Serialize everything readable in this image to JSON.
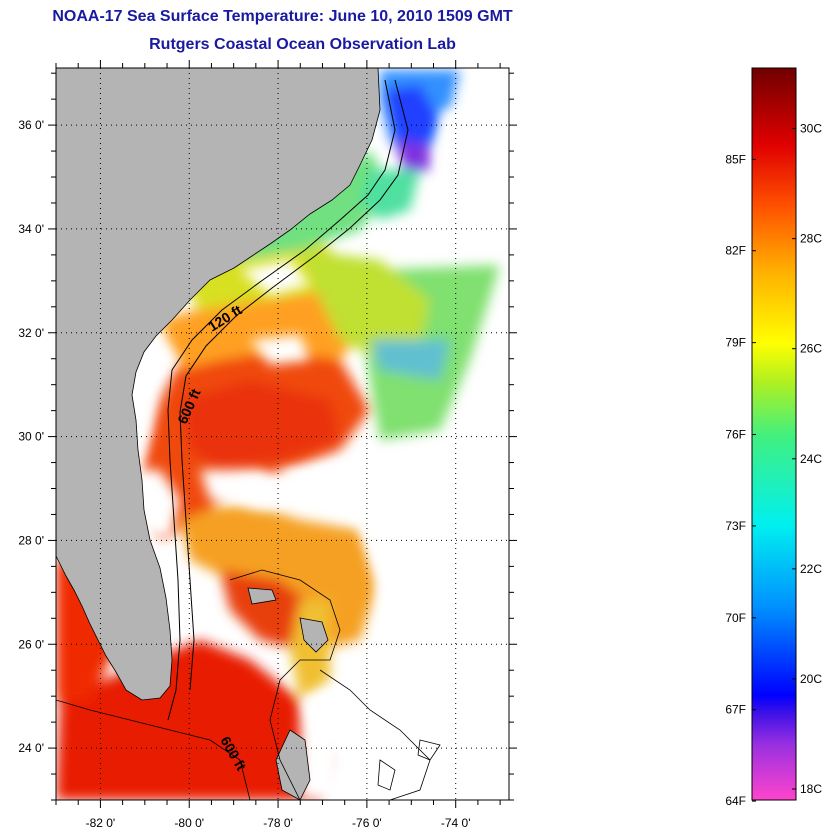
{
  "header": {
    "title": "NOAA-17 Sea Surface Temperature:  June 10, 2010 1509 GMT",
    "subtitle": "Rutgers Coastal Ocean Observation Lab"
  },
  "map": {
    "lon_range": [
      -83,
      -72.8
    ],
    "lat_range": [
      23,
      37.1
    ],
    "lon_ticks": [
      {
        "value": -82,
        "label": "-82 0'"
      },
      {
        "value": -80,
        "label": "-80 0'"
      },
      {
        "value": -78,
        "label": "-78 0'"
      },
      {
        "value": -76,
        "label": "-76 0'"
      },
      {
        "value": -74,
        "label": "-74 0'"
      }
    ],
    "lat_ticks": [
      {
        "value": 24,
        "label": "24 0'"
      },
      {
        "value": 26,
        "label": "26 0'"
      },
      {
        "value": 28,
        "label": "28 0'"
      },
      {
        "value": 30,
        "label": "30 0'"
      },
      {
        "value": 32,
        "label": "32 0'"
      },
      {
        "value": 34,
        "label": "34 0'"
      },
      {
        "value": 36,
        "label": "36 0'"
      }
    ],
    "contour_labels": [
      "120 ft",
      "600 ft",
      "600 ft"
    ],
    "land_color": "#b4b4b4",
    "cloud_color": "#ffffff"
  },
  "colorbar": {
    "temp_range_c": [
      17.8,
      31.1
    ],
    "fahrenheit_labels": [
      {
        "value_c": 17.78,
        "label": "64F"
      },
      {
        "value_c": 19.44,
        "label": "67F"
      },
      {
        "value_c": 21.11,
        "label": "70F"
      },
      {
        "value_c": 22.78,
        "label": "73F"
      },
      {
        "value_c": 24.44,
        "label": "76F"
      },
      {
        "value_c": 26.11,
        "label": "79F"
      },
      {
        "value_c": 27.78,
        "label": "82F"
      },
      {
        "value_c": 29.44,
        "label": "85F"
      }
    ],
    "celsius_labels": [
      {
        "value_c": 18,
        "label": "18C"
      },
      {
        "value_c": 20,
        "label": "20C"
      },
      {
        "value_c": 22,
        "label": "22C"
      },
      {
        "value_c": 24,
        "label": "24C"
      },
      {
        "value_c": 26,
        "label": "26C"
      },
      {
        "value_c": 28,
        "label": "28C"
      },
      {
        "value_c": 30,
        "label": "30C"
      }
    ],
    "gradient_stops": [
      {
        "value_c": 17.8,
        "color": "#ff44cc"
      },
      {
        "value_c": 18.8,
        "color": "#9a30e0"
      },
      {
        "value_c": 19.4,
        "color": "#3a10e8"
      },
      {
        "value_c": 19.7,
        "color": "#0000ff"
      },
      {
        "value_c": 21.3,
        "color": "#0090ff"
      },
      {
        "value_c": 22.8,
        "color": "#00f0f0"
      },
      {
        "value_c": 24.4,
        "color": "#40f080"
      },
      {
        "value_c": 25.4,
        "color": "#b0f020"
      },
      {
        "value_c": 26.1,
        "color": "#ffff00"
      },
      {
        "value_c": 27.4,
        "color": "#ffb000"
      },
      {
        "value_c": 28.6,
        "color": "#ff5000"
      },
      {
        "value_c": 29.7,
        "color": "#e00000"
      },
      {
        "value_c": 31.1,
        "color": "#700000"
      }
    ]
  }
}
